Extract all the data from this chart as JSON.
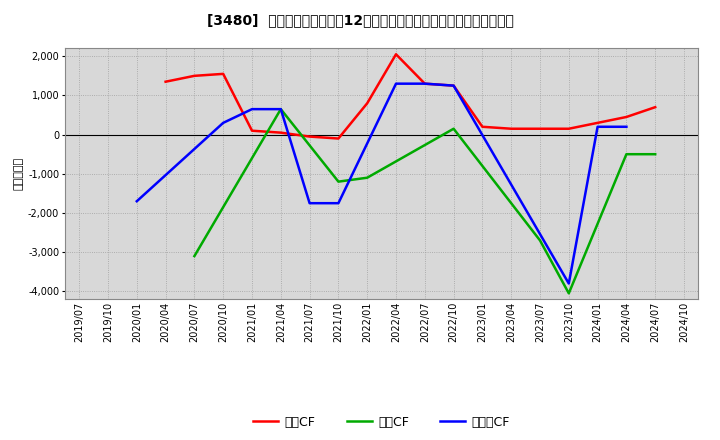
{
  "title": "[3480]  キャッシュフローの12か月移動合計の対前年同期増減額の推移",
  "ylabel": "（百万円）",
  "background_color": "#ffffff",
  "plot_bg_color": "#d8d8d8",
  "grid_color": "#aaaaaa",
  "x_labels": [
    "2019/07",
    "2019/10",
    "2020/01",
    "2020/04",
    "2020/07",
    "2020/10",
    "2021/01",
    "2021/04",
    "2021/07",
    "2021/10",
    "2022/01",
    "2022/04",
    "2022/07",
    "2022/10",
    "2023/01",
    "2023/04",
    "2023/07",
    "2023/10",
    "2024/01",
    "2024/04",
    "2024/07",
    "2024/10"
  ],
  "op_x": [
    3,
    4,
    5,
    6,
    7,
    8,
    9,
    10,
    11,
    12,
    13,
    14,
    15,
    16,
    17,
    18,
    19,
    20
  ],
  "op_y": [
    1350,
    1500,
    1550,
    100,
    50,
    -50,
    -100,
    800,
    2050,
    1300,
    1250,
    200,
    150,
    150,
    150,
    300,
    450,
    700
  ],
  "inv_x": [
    4,
    7,
    9,
    10,
    13,
    16,
    17,
    19,
    20
  ],
  "inv_y": [
    -3100,
    650,
    -1200,
    -1100,
    150,
    -2700,
    -4050,
    -500,
    -500
  ],
  "free_x": [
    2,
    5,
    6,
    7,
    8,
    9,
    11,
    12,
    13,
    17,
    18,
    19
  ],
  "free_y": [
    -1700,
    300,
    650,
    650,
    -1750,
    -1750,
    1300,
    1300,
    1250,
    -3800,
    200,
    200
  ],
  "operating_color": "#ff0000",
  "investing_color": "#00aa00",
  "free_color": "#0000ff",
  "legend_labels": [
    "営業CF",
    "投資CF",
    "フリーCF"
  ],
  "ylim": [
    -4200,
    2200
  ],
  "yticks": [
    -4000,
    -3000,
    -2000,
    -1000,
    0,
    1000,
    2000
  ]
}
